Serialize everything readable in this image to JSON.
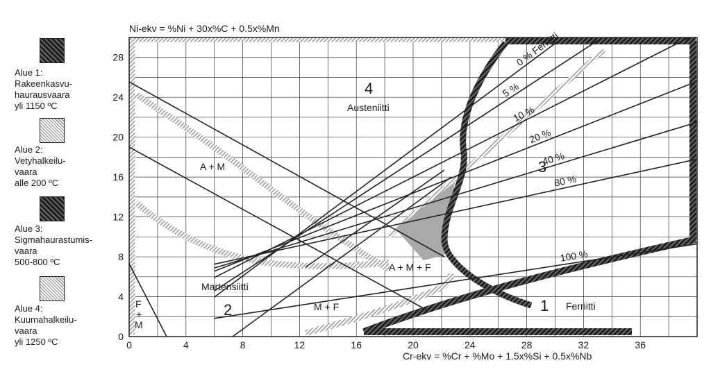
{
  "legend": [
    {
      "lines": [
        "Alue 1:",
        "Rakeenkasvu-",
        "haurausvaara",
        "yli 1150 ºC"
      ],
      "swatch": "dark"
    },
    {
      "lines": [
        "Alue 2:",
        "Vetyhalkeilu-",
        "vaara",
        "alle 200 ºC"
      ],
      "swatch": "light"
    },
    {
      "lines": [
        "Alue 3:",
        "Sigmahaurastumis-",
        "vaara",
        "500-800 ºC"
      ],
      "swatch": "dark"
    },
    {
      "lines": [
        "Alue 4:",
        "Kuumahalkeilu-",
        "vaara",
        "yli 1250 ºC"
      ],
      "swatch": "light"
    }
  ],
  "chart_data": {
    "type": "diagram",
    "ylabel": "Ni-ekv = %Ni + 30x%C + 0.5x%Mn",
    "xlabel": "Cr-ekv = %Cr + %Mo + 1.5x%Si + 0.5x%Nb",
    "x_ticks": [
      "0",
      "4",
      "8",
      "12",
      "16",
      "20",
      "24",
      "28",
      "32",
      "36"
    ],
    "y_ticks": [
      "0",
      "4",
      "8",
      "12",
      "16",
      "20",
      "24",
      "28"
    ],
    "xlim": [
      0,
      40
    ],
    "ylim": [
      0,
      30
    ],
    "region_labels": {
      "zone4_num": "4",
      "austenite": "Austeniitti",
      "zone3_num": "3",
      "am": "A + M",
      "amf": "A + M + F",
      "martensite": "Martensiitti",
      "zone2_num": "2",
      "mf": "M + F",
      "zone1_num": "1",
      "ferrite": "Ferriitti",
      "f": "F",
      "plus": "+",
      "m": "M"
    },
    "ferrite_lines": [
      {
        "label": "0 % Ferriitti",
        "slope": 1.06,
        "intercept": -2.4
      },
      {
        "label": "5 %",
        "slope": 0.93,
        "intercept": -1.0
      },
      {
        "label": "10 %",
        "slope": 0.72,
        "intercept": 1.6
      },
      {
        "label": "20 %",
        "slope": 0.56,
        "intercept": 3.2
      },
      {
        "label": "40 %",
        "slope": 0.43,
        "intercept": 4.3
      },
      {
        "label": "80 %",
        "slope": 0.31,
        "intercept": 5.4
      },
      {
        "label": "100 %",
        "slope": 0.22,
        "intercept": 0.5
      }
    ]
  }
}
